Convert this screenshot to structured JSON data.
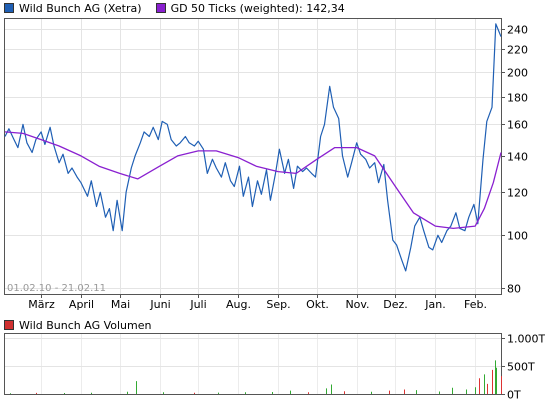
{
  "legend_top": {
    "price": {
      "label": "Wild Bunch AG (Xetra)",
      "color": "#1f5fb4"
    },
    "gd": {
      "label": "GD 50 Ticks (weighted): 142,34",
      "color": "#8a20d0"
    }
  },
  "legend_bottom": {
    "volume": {
      "label": "Wild Bunch AG Volumen",
      "color": "#d03030"
    }
  },
  "date_range": "01.02.10 - 21.02.11",
  "chart_data": [
    {
      "type": "line",
      "yscale": "log",
      "ylim": [
        78,
        250
      ],
      "yticks": [
        {
          "value": 80,
          "label": "80"
        },
        {
          "value": 100,
          "label": "100"
        },
        {
          "value": 120,
          "label": "120"
        },
        {
          "value": 140,
          "label": "140"
        },
        {
          "value": 160,
          "label": "160"
        },
        {
          "value": 180,
          "label": "180"
        },
        {
          "value": 200,
          "label": "200"
        },
        {
          "value": 220,
          "label": "220"
        },
        {
          "value": 240,
          "label": "240"
        }
      ],
      "xlim": [
        "2010-02-01",
        "2011-02-21"
      ],
      "xticks": [
        {
          "date": "2010-03-01",
          "label": "März"
        },
        {
          "date": "2010-04-01",
          "label": "April"
        },
        {
          "date": "2010-05-01",
          "label": "Mai"
        },
        {
          "date": "2010-06-01",
          "label": "Juni"
        },
        {
          "date": "2010-07-01",
          "label": "Juli"
        },
        {
          "date": "2010-08-01",
          "label": "Aug."
        },
        {
          "date": "2010-09-01",
          "label": "Sep."
        },
        {
          "date": "2010-10-01",
          "label": "Okt."
        },
        {
          "date": "2010-11-01",
          "label": "Nov."
        },
        {
          "date": "2010-12-01",
          "label": "Dez."
        },
        {
          "date": "2011-01-01",
          "label": "Jan."
        },
        {
          "date": "2011-02-01",
          "label": "Feb."
        }
      ],
      "grid": true,
      "series": [
        {
          "name": "Wild Bunch AG (Xetra)",
          "color": "#1f5fb4",
          "points": [
            [
              "2010-02-01",
              152
            ],
            [
              "2010-02-04",
              157
            ],
            [
              "2010-02-08",
              150
            ],
            [
              "2010-02-11",
              145
            ],
            [
              "2010-02-15",
              160
            ],
            [
              "2010-02-18",
              148
            ],
            [
              "2010-02-22",
              142
            ],
            [
              "2010-02-25",
              150
            ],
            [
              "2010-03-01",
              155
            ],
            [
              "2010-03-04",
              147
            ],
            [
              "2010-03-08",
              158
            ],
            [
              "2010-03-11",
              146
            ],
            [
              "2010-03-15",
              136
            ],
            [
              "2010-03-18",
              141
            ],
            [
              "2010-03-22",
              130
            ],
            [
              "2010-03-25",
              133
            ],
            [
              "2010-03-29",
              128
            ],
            [
              "2010-04-01",
              125
            ],
            [
              "2010-04-06",
              118
            ],
            [
              "2010-04-09",
              126
            ],
            [
              "2010-04-13",
              113
            ],
            [
              "2010-04-16",
              120
            ],
            [
              "2010-04-20",
              108
            ],
            [
              "2010-04-23",
              112
            ],
            [
              "2010-04-26",
              102
            ],
            [
              "2010-04-29",
              116
            ],
            [
              "2010-05-03",
              102
            ],
            [
              "2010-05-06",
              120
            ],
            [
              "2010-05-10",
              133
            ],
            [
              "2010-05-13",
              140
            ],
            [
              "2010-05-17",
              148
            ],
            [
              "2010-05-20",
              155
            ],
            [
              "2010-05-24",
              152
            ],
            [
              "2010-05-27",
              158
            ],
            [
              "2010-05-31",
              150
            ],
            [
              "2010-06-03",
              162
            ],
            [
              "2010-06-07",
              160
            ],
            [
              "2010-06-10",
              150
            ],
            [
              "2010-06-14",
              146
            ],
            [
              "2010-06-17",
              148
            ],
            [
              "2010-06-21",
              152
            ],
            [
              "2010-06-24",
              148
            ],
            [
              "2010-06-28",
              146
            ],
            [
              "2010-07-01",
              149
            ],
            [
              "2010-07-05",
              144
            ],
            [
              "2010-07-08",
              130
            ],
            [
              "2010-07-12",
              138
            ],
            [
              "2010-07-15",
              133
            ],
            [
              "2010-07-19",
              128
            ],
            [
              "2010-07-22",
              136
            ],
            [
              "2010-07-26",
              126
            ],
            [
              "2010-07-29",
              123
            ],
            [
              "2010-08-02",
              134
            ],
            [
              "2010-08-05",
              118
            ],
            [
              "2010-08-09",
              128
            ],
            [
              "2010-08-12",
              113
            ],
            [
              "2010-08-16",
              126
            ],
            [
              "2010-08-19",
              119
            ],
            [
              "2010-08-23",
              132
            ],
            [
              "2010-08-26",
              116
            ],
            [
              "2010-08-30",
              130
            ],
            [
              "2010-09-02",
              144
            ],
            [
              "2010-09-06",
              130
            ],
            [
              "2010-09-09",
              138
            ],
            [
              "2010-09-13",
              122
            ],
            [
              "2010-09-16",
              134
            ],
            [
              "2010-09-20",
              131
            ],
            [
              "2010-09-23",
              133
            ],
            [
              "2010-09-27",
              130
            ],
            [
              "2010-09-30",
              128
            ],
            [
              "2010-10-04",
              152
            ],
            [
              "2010-10-07",
              160
            ],
            [
              "2010-10-11",
              188
            ],
            [
              "2010-10-14",
              172
            ],
            [
              "2010-10-18",
              164
            ],
            [
              "2010-10-21",
              140
            ],
            [
              "2010-10-25",
              128
            ],
            [
              "2010-10-28",
              136
            ],
            [
              "2010-11-01",
              148
            ],
            [
              "2010-11-04",
              141
            ],
            [
              "2010-11-08",
              138
            ],
            [
              "2010-11-11",
              133
            ],
            [
              "2010-11-15",
              136
            ],
            [
              "2010-11-18",
              125
            ],
            [
              "2010-11-22",
              135
            ],
            [
              "2010-11-25",
              116
            ],
            [
              "2010-11-29",
              98
            ],
            [
              "2010-12-02",
              96
            ],
            [
              "2010-12-06",
              90
            ],
            [
              "2010-12-09",
              86
            ],
            [
              "2010-12-13",
              95
            ],
            [
              "2010-12-16",
              104
            ],
            [
              "2010-12-20",
              108
            ],
            [
              "2010-12-23",
              102
            ],
            [
              "2010-12-27",
              95
            ],
            [
              "2010-12-30",
              94
            ],
            [
              "2011-01-03",
              100
            ],
            [
              "2011-01-06",
              97
            ],
            [
              "2011-01-10",
              102
            ],
            [
              "2011-01-13",
              104
            ],
            [
              "2011-01-17",
              110
            ],
            [
              "2011-01-20",
              103
            ],
            [
              "2011-01-24",
              102
            ],
            [
              "2011-01-27",
              108
            ],
            [
              "2011-01-31",
              114
            ],
            [
              "2011-02-03",
              105
            ],
            [
              "2011-02-07",
              138
            ],
            [
              "2011-02-10",
              162
            ],
            [
              "2011-02-14",
              172
            ],
            [
              "2011-02-17",
              245
            ],
            [
              "2011-02-21",
              232
            ]
          ]
        },
        {
          "name": "GD 50 Ticks (weighted): 142,34",
          "color": "#8a20d0",
          "points": [
            [
              "2010-02-01",
              155
            ],
            [
              "2010-02-15",
              154
            ],
            [
              "2010-03-01",
              150
            ],
            [
              "2010-03-15",
              146
            ],
            [
              "2010-04-01",
              140
            ],
            [
              "2010-04-15",
              134
            ],
            [
              "2010-05-01",
              130
            ],
            [
              "2010-05-15",
              127
            ],
            [
              "2010-06-01",
              134
            ],
            [
              "2010-06-15",
              140
            ],
            [
              "2010-07-01",
              143
            ],
            [
              "2010-07-15",
              143
            ],
            [
              "2010-08-01",
              139
            ],
            [
              "2010-08-15",
              134
            ],
            [
              "2010-09-01",
              131
            ],
            [
              "2010-09-15",
              130
            ],
            [
              "2010-10-01",
              138
            ],
            [
              "2010-10-15",
              145
            ],
            [
              "2010-11-01",
              145
            ],
            [
              "2010-11-15",
              140
            ],
            [
              "2010-12-01",
              123
            ],
            [
              "2010-12-15",
              110
            ],
            [
              "2011-01-01",
              104
            ],
            [
              "2011-01-15",
              103
            ],
            [
              "2011-02-01",
              104
            ],
            [
              "2011-02-08",
              112
            ],
            [
              "2011-02-15",
              125
            ],
            [
              "2011-02-21",
              142
            ]
          ]
        }
      ]
    },
    {
      "type": "bar",
      "title": "Wild Bunch AG Volumen",
      "ylim": [
        0,
        1000
      ],
      "yticks": [
        {
          "value": 0,
          "label": "0T"
        },
        {
          "value": 500,
          "label": "500T"
        },
        {
          "value": 1000,
          "label": "1.000T"
        }
      ],
      "colors": {
        "up": "#33aa33",
        "down": "#dd3333"
      },
      "bars": [
        {
          "date": "2010-02-05",
          "value": 12,
          "dir": "up"
        },
        {
          "date": "2010-02-25",
          "value": 20,
          "dir": "down"
        },
        {
          "date": "2010-03-19",
          "value": 18,
          "dir": "up"
        },
        {
          "date": "2010-04-09",
          "value": 22,
          "dir": "up"
        },
        {
          "date": "2010-05-07",
          "value": 40,
          "dir": "up"
        },
        {
          "date": "2010-05-14",
          "value": 230,
          "dir": "up"
        },
        {
          "date": "2010-06-04",
          "value": 30,
          "dir": "up"
        },
        {
          "date": "2010-06-28",
          "value": 22,
          "dir": "down"
        },
        {
          "date": "2010-07-16",
          "value": 25,
          "dir": "up"
        },
        {
          "date": "2010-08-06",
          "value": 30,
          "dir": "up"
        },
        {
          "date": "2010-08-27",
          "value": 35,
          "dir": "up"
        },
        {
          "date": "2010-09-10",
          "value": 60,
          "dir": "up"
        },
        {
          "date": "2010-09-24",
          "value": 30,
          "dir": "down"
        },
        {
          "date": "2010-10-08",
          "value": 100,
          "dir": "up"
        },
        {
          "date": "2010-10-12",
          "value": 170,
          "dir": "up"
        },
        {
          "date": "2010-10-22",
          "value": 50,
          "dir": "down"
        },
        {
          "date": "2010-11-12",
          "value": 40,
          "dir": "up"
        },
        {
          "date": "2010-11-26",
          "value": 60,
          "dir": "down"
        },
        {
          "date": "2010-12-08",
          "value": 80,
          "dir": "down"
        },
        {
          "date": "2010-12-17",
          "value": 70,
          "dir": "up"
        },
        {
          "date": "2011-01-04",
          "value": 45,
          "dir": "up"
        },
        {
          "date": "2011-01-14",
          "value": 110,
          "dir": "up"
        },
        {
          "date": "2011-01-25",
          "value": 80,
          "dir": "up"
        },
        {
          "date": "2011-02-01",
          "value": 120,
          "dir": "up"
        },
        {
          "date": "2011-02-04",
          "value": 280,
          "dir": "down"
        },
        {
          "date": "2011-02-08",
          "value": 350,
          "dir": "up"
        },
        {
          "date": "2011-02-10",
          "value": 180,
          "dir": "down"
        },
        {
          "date": "2011-02-14",
          "value": 430,
          "dir": "down"
        },
        {
          "date": "2011-02-16",
          "value": 600,
          "dir": "up"
        },
        {
          "date": "2011-02-17",
          "value": 470,
          "dir": "up"
        },
        {
          "date": "2011-02-21",
          "value": 320,
          "dir": "down"
        }
      ]
    }
  ]
}
